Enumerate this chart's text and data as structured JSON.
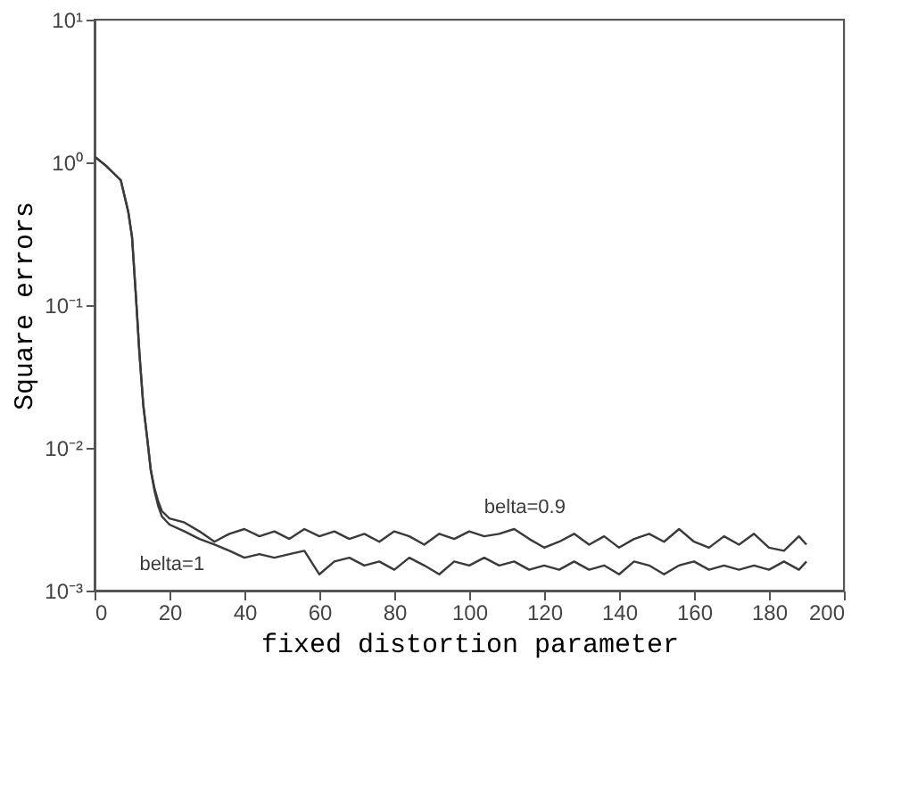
{
  "chart_data": {
    "type": "line",
    "xlabel": "fixed distortion parameter",
    "ylabel": "Square errors",
    "x": [
      0,
      3,
      7,
      9,
      10,
      11,
      12,
      13,
      14,
      15,
      16,
      17,
      18,
      20,
      24,
      28,
      32,
      36,
      40,
      44,
      48,
      52,
      56,
      60,
      64,
      68,
      72,
      76,
      80,
      84,
      88,
      92,
      96,
      100,
      104,
      108,
      112,
      116,
      120,
      124,
      128,
      132,
      136,
      140,
      144,
      148,
      152,
      156,
      160,
      164,
      168,
      172,
      176,
      180,
      184,
      188,
      190
    ],
    "series": [
      {
        "name": "belta=0.9",
        "color": "#3a3a3a",
        "values": [
          1.1,
          0.95,
          0.75,
          0.45,
          0.3,
          0.12,
          0.045,
          0.02,
          0.012,
          0.007,
          0.0052,
          0.0042,
          0.0036,
          0.0032,
          0.003,
          0.0026,
          0.0022,
          0.0025,
          0.0027,
          0.0024,
          0.0026,
          0.0023,
          0.0027,
          0.0024,
          0.0026,
          0.0023,
          0.0025,
          0.0022,
          0.0026,
          0.0024,
          0.0021,
          0.0025,
          0.0023,
          0.0026,
          0.0024,
          0.0025,
          0.0027,
          0.0023,
          0.002,
          0.0022,
          0.0025,
          0.0021,
          0.0024,
          0.002,
          0.0023,
          0.0025,
          0.0022,
          0.0027,
          0.0022,
          0.002,
          0.0024,
          0.0021,
          0.0025,
          0.002,
          0.0019,
          0.0024,
          0.0021
        ]
      },
      {
        "name": "belta=1",
        "color": "#3a3a3a",
        "values": [
          1.1,
          0.95,
          0.75,
          0.45,
          0.3,
          0.12,
          0.045,
          0.02,
          0.012,
          0.007,
          0.005,
          0.0039,
          0.0033,
          0.0029,
          0.0026,
          0.0023,
          0.0021,
          0.0019,
          0.0017,
          0.0018,
          0.0017,
          0.0018,
          0.0019,
          0.0013,
          0.0016,
          0.0017,
          0.0015,
          0.0016,
          0.0014,
          0.0017,
          0.0015,
          0.0013,
          0.0016,
          0.0015,
          0.0017,
          0.0015,
          0.0016,
          0.0014,
          0.0015,
          0.0014,
          0.0016,
          0.0014,
          0.0015,
          0.0013,
          0.0016,
          0.0015,
          0.0013,
          0.0015,
          0.0016,
          0.0014,
          0.0015,
          0.0014,
          0.0015,
          0.0014,
          0.0016,
          0.0014,
          0.0016
        ]
      }
    ],
    "xlim": [
      0,
      200
    ],
    "xticks": [
      0,
      20,
      40,
      60,
      80,
      100,
      120,
      140,
      160,
      180,
      200
    ],
    "ylim": [
      0.001,
      10
    ],
    "yticks": [
      {
        "value": 0.001,
        "label": "10⁻³"
      },
      {
        "value": 0.01,
        "label": "10⁻²"
      },
      {
        "value": 0.1,
        "label": "10⁻¹"
      },
      {
        "value": 1,
        "label": "10⁰"
      },
      {
        "value": 10,
        "label": "10¹"
      }
    ],
    "log": true,
    "grid": false,
    "legend": false,
    "marker": "none",
    "line_style": "solid"
  }
}
